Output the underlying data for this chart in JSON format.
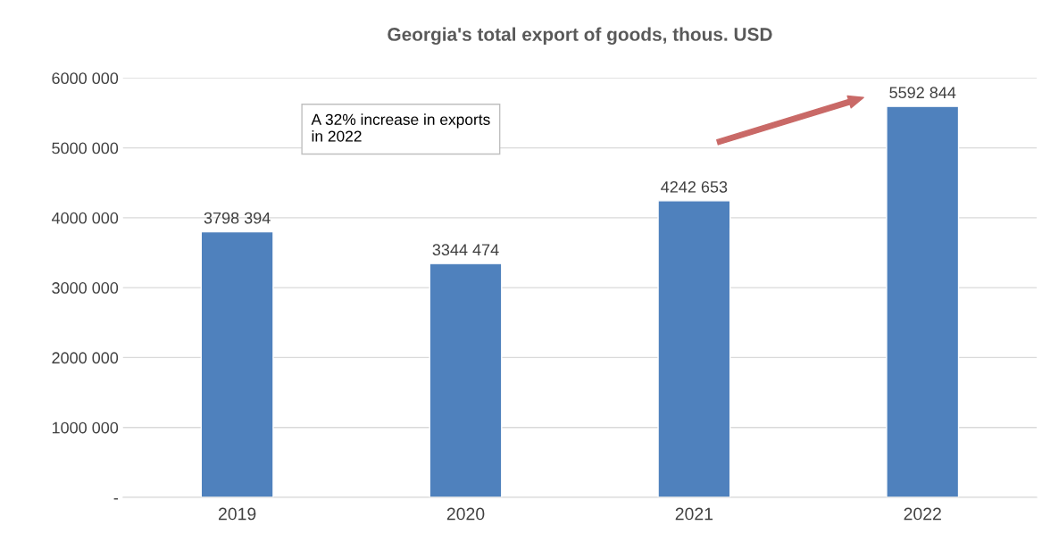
{
  "chart_data": {
    "type": "bar",
    "title": "Georgia's total export of goods, thous. USD",
    "categories": [
      "2019",
      "2020",
      "2021",
      "2022"
    ],
    "values": [
      3798394,
      3344474,
      4242653,
      5592844
    ],
    "value_labels": [
      "3798 394",
      "3344 474",
      "4242 653",
      "5592 844"
    ],
    "color": "#4f81bd",
    "ylim": [
      0,
      6000000
    ],
    "yticks": [
      {
        "value": 0,
        "label": "-"
      },
      {
        "value": 1000000,
        "label": "1000 000"
      },
      {
        "value": 2000000,
        "label": "2000 000"
      },
      {
        "value": 3000000,
        "label": "3000 000"
      },
      {
        "value": 4000000,
        "label": "4000 000"
      },
      {
        "value": 5000000,
        "label": "5000 000"
      },
      {
        "value": 6000000,
        "label": "6000 000"
      }
    ],
    "grid": "y",
    "annotations": [
      "A 32% increase in exports\nin 2022"
    ]
  }
}
